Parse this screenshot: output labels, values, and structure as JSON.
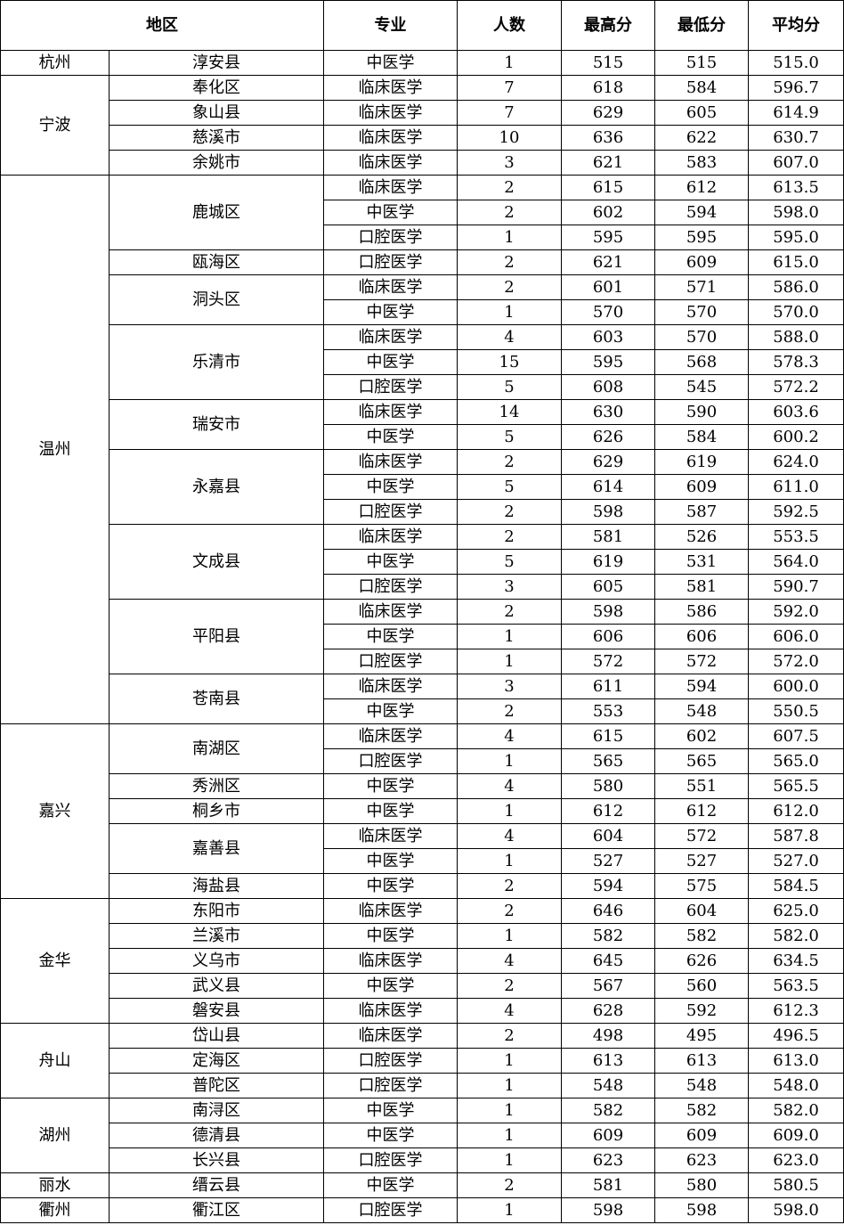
{
  "headers": {
    "region": "地区",
    "major": "专业",
    "count": "人数",
    "max": "最高分",
    "min": "最低分",
    "avg": "平均分"
  },
  "regions": [
    {
      "city": "杭州",
      "districts": [
        {
          "name": "淳安县",
          "rows": [
            [
              "中医学",
              "1",
              "515",
              "515",
              "515.0"
            ]
          ]
        }
      ]
    },
    {
      "city": "宁波",
      "districts": [
        {
          "name": "奉化区",
          "rows": [
            [
              "临床医学",
              "7",
              "618",
              "584",
              "596.7"
            ]
          ]
        },
        {
          "name": "象山县",
          "rows": [
            [
              "临床医学",
              "7",
              "629",
              "605",
              "614.9"
            ]
          ]
        },
        {
          "name": "慈溪市",
          "rows": [
            [
              "临床医学",
              "10",
              "636",
              "622",
              "630.7"
            ]
          ]
        },
        {
          "name": "余姚市",
          "rows": [
            [
              "临床医学",
              "3",
              "621",
              "583",
              "607.0"
            ]
          ]
        }
      ]
    },
    {
      "city": "温州",
      "districts": [
        {
          "name": "鹿城区",
          "rows": [
            [
              "临床医学",
              "2",
              "615",
              "612",
              "613.5"
            ],
            [
              "中医学",
              "2",
              "602",
              "594",
              "598.0"
            ],
            [
              "口腔医学",
              "1",
              "595",
              "595",
              "595.0"
            ]
          ]
        },
        {
          "name": "瓯海区",
          "rows": [
            [
              "口腔医学",
              "2",
              "621",
              "609",
              "615.0"
            ]
          ]
        },
        {
          "name": "洞头区",
          "rows": [
            [
              "临床医学",
              "2",
              "601",
              "571",
              "586.0"
            ],
            [
              "中医学",
              "1",
              "570",
              "570",
              "570.0"
            ]
          ]
        },
        {
          "name": "乐清市",
          "rows": [
            [
              "临床医学",
              "4",
              "603",
              "570",
              "588.0"
            ],
            [
              "中医学",
              "15",
              "595",
              "568",
              "578.3"
            ],
            [
              "口腔医学",
              "5",
              "608",
              "545",
              "572.2"
            ]
          ]
        },
        {
          "name": "瑞安市",
          "rows": [
            [
              "临床医学",
              "14",
              "630",
              "590",
              "603.6"
            ],
            [
              "中医学",
              "5",
              "626",
              "584",
              "600.2"
            ]
          ]
        },
        {
          "name": "永嘉县",
          "rows": [
            [
              "临床医学",
              "2",
              "629",
              "619",
              "624.0"
            ],
            [
              "中医学",
              "5",
              "614",
              "609",
              "611.0"
            ],
            [
              "口腔医学",
              "2",
              "598",
              "587",
              "592.5"
            ]
          ]
        },
        {
          "name": "文成县",
          "rows": [
            [
              "临床医学",
              "2",
              "581",
              "526",
              "553.5"
            ],
            [
              "中医学",
              "5",
              "619",
              "531",
              "564.0"
            ],
            [
              "口腔医学",
              "3",
              "605",
              "581",
              "590.7"
            ]
          ]
        },
        {
          "name": "平阳县",
          "rows": [
            [
              "临床医学",
              "2",
              "598",
              "586",
              "592.0"
            ],
            [
              "中医学",
              "1",
              "606",
              "606",
              "606.0"
            ],
            [
              "口腔医学",
              "1",
              "572",
              "572",
              "572.0"
            ]
          ]
        },
        {
          "name": "苍南县",
          "rows": [
            [
              "临床医学",
              "3",
              "611",
              "594",
              "600.0"
            ],
            [
              "中医学",
              "2",
              "553",
              "548",
              "550.5"
            ]
          ]
        }
      ]
    },
    {
      "city": "嘉兴",
      "districts": [
        {
          "name": "南湖区",
          "rows": [
            [
              "临床医学",
              "4",
              "615",
              "602",
              "607.5"
            ],
            [
              "口腔医学",
              "1",
              "565",
              "565",
              "565.0"
            ]
          ]
        },
        {
          "name": "秀洲区",
          "rows": [
            [
              "中医学",
              "4",
              "580",
              "551",
              "565.5"
            ]
          ]
        },
        {
          "name": "桐乡市",
          "rows": [
            [
              "中医学",
              "1",
              "612",
              "612",
              "612.0"
            ]
          ]
        },
        {
          "name": "嘉善县",
          "rows": [
            [
              "临床医学",
              "4",
              "604",
              "572",
              "587.8"
            ],
            [
              "中医学",
              "1",
              "527",
              "527",
              "527.0"
            ]
          ]
        },
        {
          "name": "海盐县",
          "rows": [
            [
              "中医学",
              "2",
              "594",
              "575",
              "584.5"
            ]
          ]
        }
      ]
    },
    {
      "city": "金华",
      "districts": [
        {
          "name": "东阳市",
          "rows": [
            [
              "临床医学",
              "2",
              "646",
              "604",
              "625.0"
            ]
          ]
        },
        {
          "name": "兰溪市",
          "rows": [
            [
              "中医学",
              "1",
              "582",
              "582",
              "582.0"
            ]
          ]
        },
        {
          "name": "义乌市",
          "rows": [
            [
              "临床医学",
              "4",
              "645",
              "626",
              "634.5"
            ]
          ]
        },
        {
          "name": "武义县",
          "rows": [
            [
              "中医学",
              "2",
              "567",
              "560",
              "563.5"
            ]
          ]
        },
        {
          "name": "磐安县",
          "rows": [
            [
              "临床医学",
              "4",
              "628",
              "592",
              "612.3"
            ]
          ]
        }
      ]
    },
    {
      "city": "舟山",
      "districts": [
        {
          "name": "岱山县",
          "rows": [
            [
              "临床医学",
              "2",
              "498",
              "495",
              "496.5"
            ]
          ]
        },
        {
          "name": "定海区",
          "rows": [
            [
              "口腔医学",
              "1",
              "613",
              "613",
              "613.0"
            ]
          ]
        },
        {
          "name": "普陀区",
          "rows": [
            [
              "口腔医学",
              "1",
              "548",
              "548",
              "548.0"
            ]
          ]
        }
      ]
    },
    {
      "city": "湖州",
      "districts": [
        {
          "name": "南浔区",
          "rows": [
            [
              "中医学",
              "1",
              "582",
              "582",
              "582.0"
            ]
          ]
        },
        {
          "name": "德清县",
          "rows": [
            [
              "中医学",
              "1",
              "609",
              "609",
              "609.0"
            ]
          ]
        },
        {
          "name": "长兴县",
          "rows": [
            [
              "口腔医学",
              "1",
              "623",
              "623",
              "623.0"
            ]
          ]
        }
      ]
    },
    {
      "city": "丽水",
      "districts": [
        {
          "name": "缙云县",
          "rows": [
            [
              "中医学",
              "2",
              "581",
              "580",
              "580.5"
            ]
          ]
        }
      ]
    },
    {
      "city": "衢州",
      "districts": [
        {
          "name": "衢江区",
          "rows": [
            [
              "口腔医学",
              "1",
              "598",
              "598",
              "598.0"
            ]
          ]
        }
      ]
    }
  ]
}
